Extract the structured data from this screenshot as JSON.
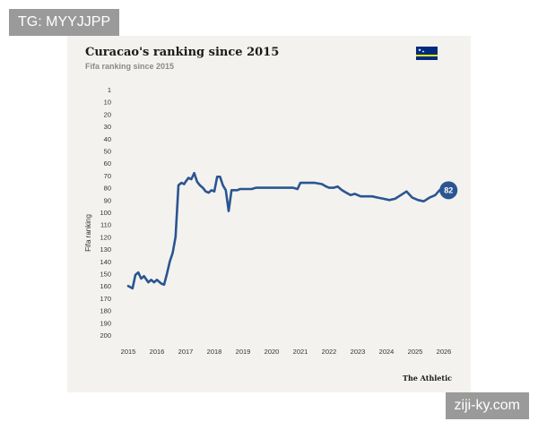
{
  "watermarks": {
    "top_left": "TG: MYYJJPP",
    "bottom_right": "ziji-ky.com"
  },
  "card": {
    "brand": "The Athletic",
    "flag": "curacao-flag"
  },
  "colors": {
    "line": "#2a5591",
    "card_bg": "#f3f2ee",
    "marker": "#2a5591"
  },
  "chart_data": {
    "type": "line",
    "title": "Curacao's ranking since 2015",
    "subtitle": "Fifa ranking since 2015",
    "xlabel": "",
    "ylabel": "Fifa ranking",
    "y_inverted": true,
    "ylim": [
      1,
      200
    ],
    "yticks": [
      1,
      10,
      20,
      30,
      40,
      50,
      60,
      70,
      80,
      90,
      100,
      110,
      120,
      130,
      140,
      150,
      160,
      170,
      180,
      190,
      200
    ],
    "xlim": [
      2015,
      2026
    ],
    "xticks": [
      2015,
      2016,
      2017,
      2018,
      2019,
      2020,
      2021,
      2022,
      2023,
      2024,
      2025,
      2026
    ],
    "grid": false,
    "end_label": "82",
    "series": [
      {
        "x": [
          2015.0,
          2015.15,
          2015.25,
          2015.35,
          2015.45,
          2015.55,
          2015.7,
          2015.8,
          2015.9,
          2016.0,
          2016.15,
          2016.25,
          2016.35,
          2016.45,
          2016.55,
          2016.65,
          2016.75,
          2016.85,
          2016.95,
          2017.0,
          2017.1,
          2017.2,
          2017.3,
          2017.4,
          2017.5,
          2017.6,
          2017.7,
          2017.8,
          2017.9,
          2018.0,
          2018.1,
          2018.2,
          2018.3,
          2018.4,
          2018.5,
          2018.6,
          2018.7,
          2018.8,
          2018.9,
          2019.0,
          2019.15,
          2019.3,
          2019.45,
          2019.6,
          2019.75,
          2019.9,
          2020.0,
          2020.25,
          2020.5,
          2020.75,
          2020.9,
          2021.0,
          2021.25,
          2021.5,
          2021.75,
          2021.9,
          2022.0,
          2022.15,
          2022.3,
          2022.45,
          2022.6,
          2022.75,
          2022.9,
          2023.1,
          2023.3,
          2023.5,
          2023.7,
          2023.9,
          2024.1,
          2024.3,
          2024.5,
          2024.7,
          2024.9,
          2025.1,
          2025.3,
          2025.5,
          2025.7,
          2025.85
        ],
        "y": [
          160,
          162,
          151,
          149,
          154,
          152,
          157,
          155,
          157,
          155,
          158,
          159,
          150,
          140,
          133,
          120,
          78,
          76,
          77,
          75,
          72,
          73,
          68,
          75,
          78,
          80,
          83,
          84,
          82,
          83,
          71,
          71,
          78,
          82,
          99,
          82,
          82,
          82,
          81,
          81,
          81,
          81,
          80,
          80,
          80,
          80,
          80,
          80,
          80,
          80,
          81,
          76,
          76,
          76,
          77,
          79,
          80,
          80,
          79,
          82,
          84,
          86,
          85,
          87,
          87,
          87,
          88,
          89,
          90,
          89,
          86,
          83,
          88,
          90,
          91,
          88,
          86,
          82
        ]
      }
    ]
  }
}
